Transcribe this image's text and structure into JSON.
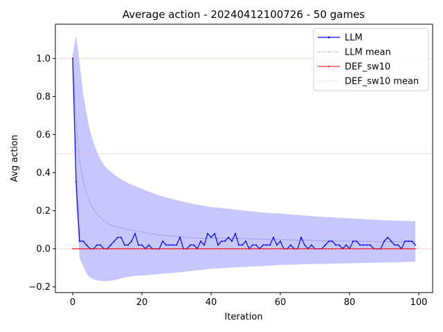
{
  "chart_data": {
    "type": "line",
    "title": "Average action - 20240412100726 - 50 games",
    "xlabel": "Iteration",
    "ylabel": "Avg action",
    "xlim": [
      -5,
      104
    ],
    "ylim": [
      -0.23,
      1.18
    ],
    "xticks": [
      0,
      20,
      40,
      60,
      80,
      100
    ],
    "yticks": [
      -0.2,
      0.0,
      0.2,
      0.4,
      0.6,
      0.8,
      1.0
    ],
    "ytick_labels": [
      "−0.2",
      "0.0",
      "0.2",
      "0.4",
      "0.6",
      "0.8",
      "1.0"
    ],
    "grid": false,
    "legend_position": "top-right",
    "colors": {
      "llm": "#0000ff",
      "llm_mean": "#7b7bd6",
      "band": "#0000ff",
      "def": "#ff0000",
      "def_mean": "#ffb3b3"
    },
    "series": [
      {
        "name": "LLM",
        "x_start": 0,
        "values": [
          1.0,
          0.35,
          0.04,
          0.04,
          0.02,
          0.0,
          0.0,
          0.02,
          0.02,
          0.0,
          0.0,
          0.02,
          0.04,
          0.06,
          0.06,
          0.02,
          0.02,
          0.04,
          0.08,
          0.02,
          0.02,
          0.0,
          0.02,
          0.0,
          0.0,
          0.0,
          0.04,
          0.02,
          0.02,
          0.02,
          0.02,
          0.06,
          0.0,
          0.0,
          0.02,
          0.02,
          0.0,
          0.04,
          0.02,
          0.08,
          0.06,
          0.08,
          0.02,
          0.04,
          0.04,
          0.06,
          0.04,
          0.08,
          0.02,
          0.02,
          0.04,
          0.0,
          0.02,
          0.02,
          0.0,
          0.02,
          0.02,
          0.02,
          0.06,
          0.02,
          0.04,
          0.0,
          0.0,
          0.02,
          0.0,
          0.0,
          0.06,
          0.02,
          0.0,
          0.02,
          0.0,
          0.0,
          0.0,
          0.02,
          0.04,
          0.04,
          0.02,
          0.02,
          0.0,
          0.02,
          0.0,
          0.04,
          0.04,
          0.02,
          0.02,
          0.02,
          0.02,
          0.0,
          0.0,
          0.0,
          0.04,
          0.06,
          0.04,
          0.02,
          0.02,
          0.0,
          0.04,
          0.04,
          0.04,
          0.02
        ]
      },
      {
        "name": "LLM mean",
        "x_start": 0,
        "values": [
          1.0,
          0.675,
          0.463,
          0.358,
          0.29,
          0.242,
          0.207,
          0.184,
          0.166,
          0.149,
          0.135,
          0.126,
          0.119,
          0.115,
          0.111,
          0.105,
          0.1,
          0.097,
          0.096,
          0.092,
          0.089,
          0.085,
          0.082,
          0.078,
          0.075,
          0.072,
          0.071,
          0.069,
          0.067,
          0.066,
          0.064,
          0.064,
          0.062,
          0.06,
          0.059,
          0.058,
          0.056,
          0.056,
          0.055,
          0.055,
          0.055,
          0.056,
          0.055,
          0.055,
          0.055,
          0.055,
          0.055,
          0.056,
          0.055,
          0.054,
          0.054,
          0.053,
          0.053,
          0.052,
          0.051,
          0.05,
          0.05,
          0.049,
          0.049,
          0.049,
          0.049,
          0.048,
          0.047,
          0.047,
          0.046,
          0.045,
          0.046,
          0.045,
          0.045,
          0.044,
          0.044,
          0.043,
          0.042,
          0.042,
          0.042,
          0.042,
          0.041,
          0.041,
          0.04,
          0.04,
          0.04,
          0.04,
          0.04,
          0.039,
          0.039,
          0.039,
          0.039,
          0.038,
          0.038,
          0.037,
          0.037,
          0.038,
          0.038,
          0.037,
          0.037,
          0.037,
          0.037,
          0.037,
          0.037,
          0.037
        ]
      },
      {
        "name": "DEF_sw10",
        "x_start": 0,
        "constant": 0.0,
        "count": 100
      },
      {
        "name": "DEF_sw10 mean",
        "x_start": 0,
        "constant": 0.0,
        "count": 100
      }
    ],
    "band": {
      "x": [
        0,
        1,
        2,
        3,
        4,
        5,
        6,
        7,
        8,
        9,
        10,
        12,
        14,
        16,
        18,
        20,
        25,
        30,
        35,
        40,
        45,
        50,
        55,
        60,
        65,
        70,
        75,
        80,
        85,
        90,
        95,
        99
      ],
      "upper": [
        1.02,
        1.12,
        0.98,
        0.82,
        0.71,
        0.62,
        0.56,
        0.51,
        0.47,
        0.44,
        0.42,
        0.39,
        0.365,
        0.345,
        0.33,
        0.315,
        0.28,
        0.255,
        0.235,
        0.22,
        0.21,
        0.2,
        0.19,
        0.185,
        0.178,
        0.17,
        0.165,
        0.16,
        0.155,
        0.15,
        0.147,
        0.145
      ],
      "lower": [
        0.98,
        0.23,
        -0.05,
        -0.09,
        -0.13,
        -0.15,
        -0.16,
        -0.165,
        -0.168,
        -0.17,
        -0.17,
        -0.165,
        -0.155,
        -0.148,
        -0.142,
        -0.14,
        -0.133,
        -0.125,
        -0.115,
        -0.105,
        -0.1,
        -0.095,
        -0.09,
        -0.085,
        -0.082,
        -0.08,
        -0.078,
        -0.076,
        -0.074,
        -0.072,
        -0.07,
        -0.068
      ]
    },
    "reference_lines": [
      1.0,
      0.5,
      0.0
    ]
  }
}
